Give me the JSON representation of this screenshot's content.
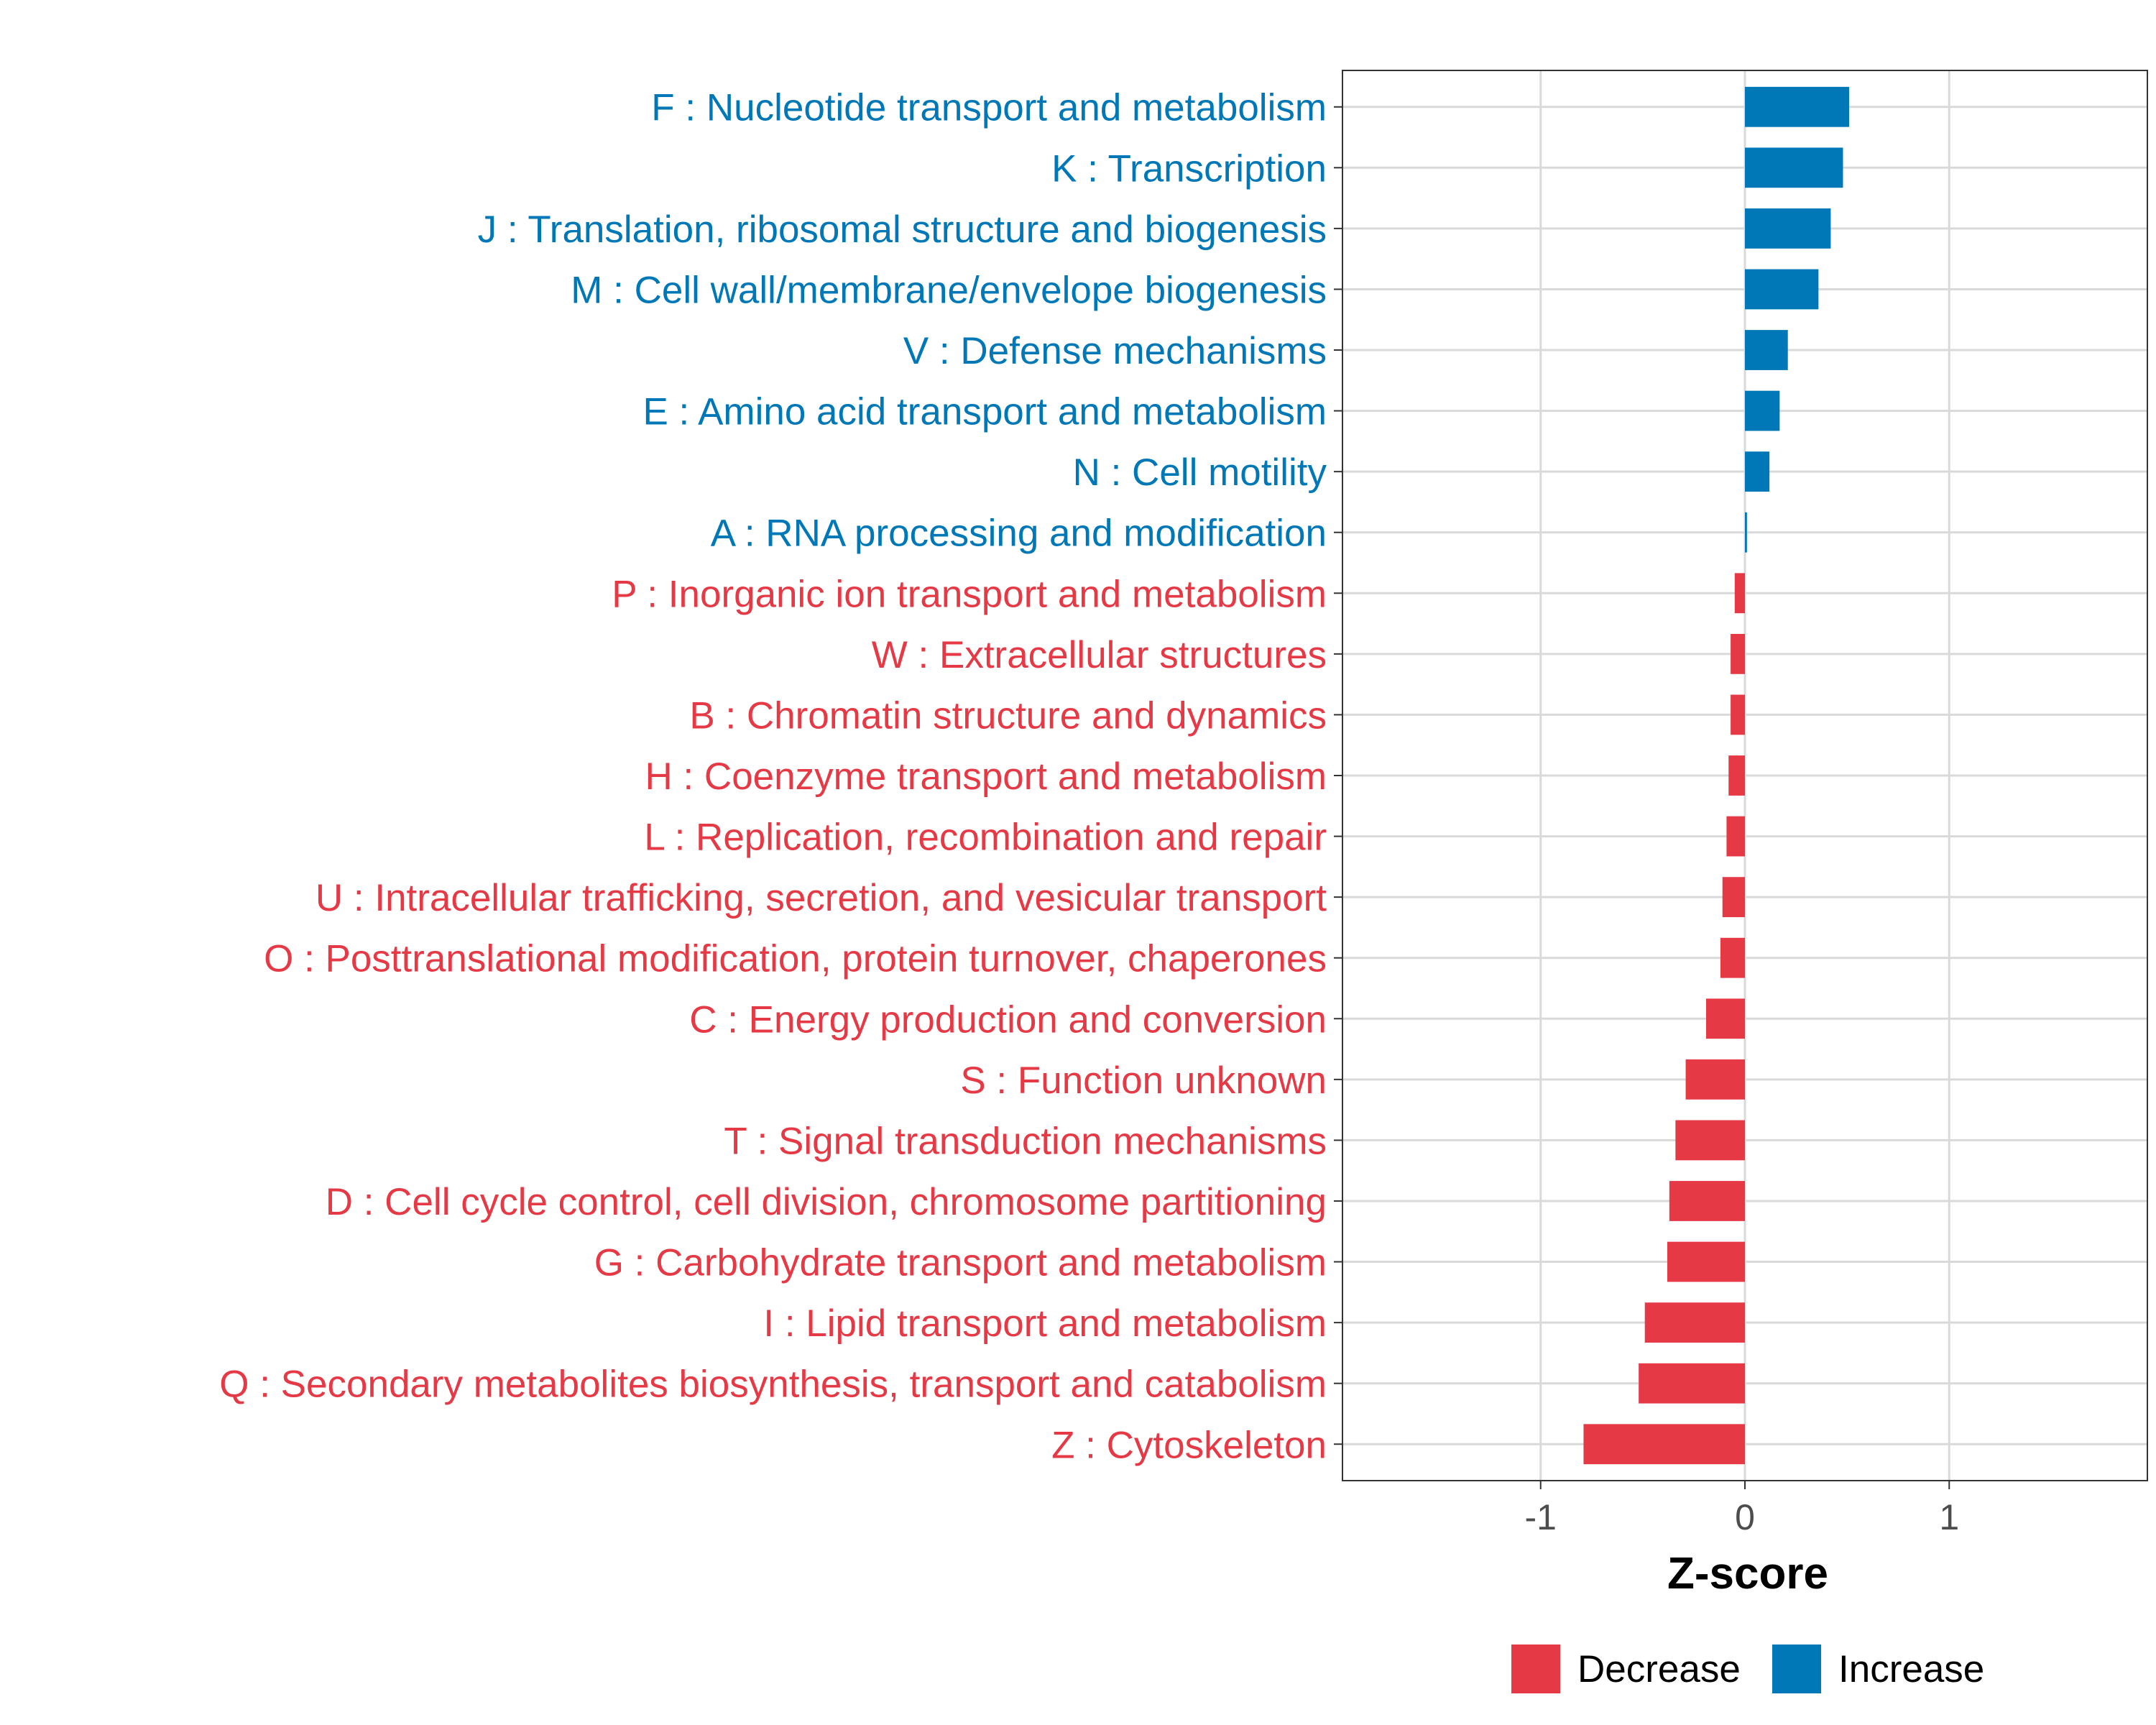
{
  "chart_data": {
    "type": "bar",
    "orientation": "horizontal",
    "title": "",
    "xlabel": "Z-score",
    "ylabel": "",
    "xlim": [
      -1.97,
      1.97
    ],
    "x_ticks": [
      {
        "value": -1,
        "label": "-1"
      },
      {
        "value": 0,
        "label": "0"
      },
      {
        "value": 1,
        "label": "1"
      }
    ],
    "grid": true,
    "colors": {
      "Decrease": "#e63946",
      "Increase": "#0077b6"
    },
    "legend": {
      "position": "bottom",
      "entries": [
        {
          "label": "Decrease",
          "color": "#e63946"
        },
        {
          "label": "Increase",
          "color": "#0077b6"
        }
      ]
    },
    "categories": [
      "F : Nucleotide transport and metabolism",
      "K : Transcription",
      "J : Translation, ribosomal structure and biogenesis",
      "M : Cell wall/membrane/envelope biogenesis",
      "V : Defense mechanisms",
      "E : Amino acid transport and metabolism",
      "N : Cell motility",
      "A : RNA processing and modification",
      "P : Inorganic ion transport and metabolism",
      "W : Extracellular structures",
      "B : Chromatin structure and dynamics",
      "H : Coenzyme transport and metabolism",
      "L : Replication, recombination and repair",
      "U : Intracellular trafficking, secretion, and vesicular transport",
      "O : Posttranslational modification, protein turnover, chaperones",
      "C : Energy production and conversion",
      "S : Function unknown",
      "T : Signal transduction mechanisms",
      "D : Cell cycle control, cell division, chromosome partitioning",
      "G : Carbohydrate transport and metabolism",
      "I : Lipid transport and metabolism",
      "Q : Secondary metabolites biosynthesis, transport and catabolism",
      "Z : Cytoskeleton"
    ],
    "values": [
      0.51,
      0.48,
      0.42,
      0.36,
      0.21,
      0.17,
      0.12,
      0.01,
      -0.05,
      -0.07,
      -0.07,
      -0.08,
      -0.09,
      -0.11,
      -0.12,
      -0.19,
      -0.29,
      -0.34,
      -0.37,
      -0.38,
      -0.49,
      -0.52,
      -0.79
    ],
    "groups": [
      "Increase",
      "Increase",
      "Increase",
      "Increase",
      "Increase",
      "Increase",
      "Increase",
      "Increase",
      "Decrease",
      "Decrease",
      "Decrease",
      "Decrease",
      "Decrease",
      "Decrease",
      "Decrease",
      "Decrease",
      "Decrease",
      "Decrease",
      "Decrease",
      "Decrease",
      "Decrease",
      "Decrease",
      "Decrease"
    ]
  }
}
